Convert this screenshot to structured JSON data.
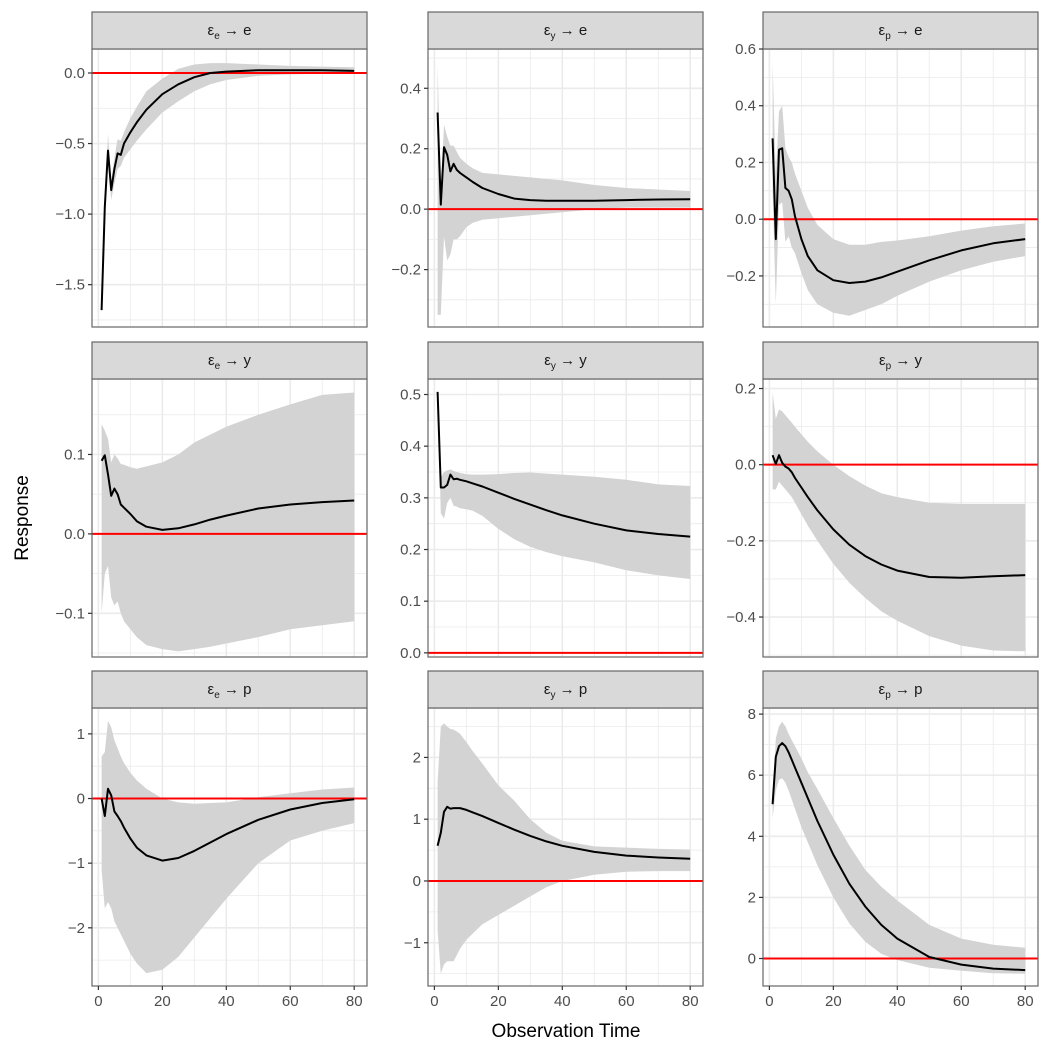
{
  "chart_data": {
    "type": "line",
    "title": "",
    "xlabel": "Observation Time",
    "ylabel": "Response",
    "layout": "3x3 facet grid",
    "grid": true,
    "legend": "none",
    "colors": {
      "line": "#000000",
      "band": "#d3d3d3",
      "zero_line": "#ff0000",
      "strip": "#d9d9d9",
      "grid": "#ebebeb",
      "border": "#666666"
    },
    "xlim": [
      -2,
      84
    ],
    "xticks": [
      0,
      20,
      40,
      60,
      80
    ],
    "panels": [
      {
        "shock": "e",
        "response": "e",
        "title_main": "ε",
        "title_sub": "e",
        "title_tail": " → e",
        "ylim": [
          -1.8,
          0.17
        ],
        "yticks": [
          0.0,
          -0.5,
          -1.0,
          -1.5
        ],
        "ytick_labels": [
          "0.0",
          "−0.5",
          "−1.0",
          "−1.5"
        ],
        "x": [
          1,
          2,
          3,
          4,
          5,
          6,
          7,
          8,
          10,
          12,
          15,
          20,
          25,
          30,
          35,
          40,
          50,
          60,
          70,
          80
        ],
        "value": [
          -1.68,
          -0.95,
          -0.55,
          -0.83,
          -0.68,
          -0.57,
          -0.58,
          -0.5,
          -0.42,
          -0.35,
          -0.26,
          -0.15,
          -0.08,
          -0.03,
          0.0,
          0.01,
          0.02,
          0.02,
          0.02,
          0.015
        ],
        "lower": [
          -1.68,
          -0.97,
          -0.62,
          -0.9,
          -0.78,
          -0.68,
          -0.66,
          -0.6,
          -0.54,
          -0.48,
          -0.4,
          -0.28,
          -0.2,
          -0.13,
          -0.08,
          -0.05,
          -0.02,
          -0.01,
          -0.005,
          -0.005
        ],
        "upper": [
          -1.68,
          -0.92,
          -0.43,
          -0.76,
          -0.6,
          -0.47,
          -0.48,
          -0.42,
          -0.32,
          -0.24,
          -0.13,
          -0.04,
          0.03,
          0.06,
          0.07,
          0.07,
          0.06,
          0.05,
          0.045,
          0.04
        ]
      },
      {
        "shock": "y",
        "response": "e",
        "title_main": "ε",
        "title_sub": "y",
        "title_tail": " → e",
        "ylim": [
          -0.39,
          0.53
        ],
        "yticks": [
          0.4,
          0.2,
          0.0,
          -0.2
        ],
        "ytick_labels": [
          "0.4",
          "0.2",
          "0.0",
          "−0.2"
        ],
        "x": [
          1,
          2,
          3,
          4,
          5,
          6,
          7,
          8,
          10,
          12,
          15,
          20,
          25,
          30,
          35,
          40,
          50,
          60,
          70,
          80
        ],
        "value": [
          0.32,
          0.015,
          0.205,
          0.18,
          0.125,
          0.15,
          0.13,
          0.12,
          0.105,
          0.09,
          0.07,
          0.05,
          0.035,
          0.03,
          0.028,
          0.028,
          0.028,
          0.03,
          0.032,
          0.033
        ],
        "lower": [
          -0.35,
          -0.35,
          -0.09,
          -0.17,
          -0.15,
          -0.1,
          -0.1,
          -0.09,
          -0.06,
          -0.045,
          -0.035,
          -0.03,
          -0.025,
          -0.02,
          -0.015,
          -0.01,
          0.0,
          0.005,
          0.005,
          0.005
        ],
        "upper": [
          0.48,
          0.05,
          0.28,
          0.24,
          0.21,
          0.21,
          0.19,
          0.17,
          0.15,
          0.135,
          0.12,
          0.115,
          0.11,
          0.105,
          0.1,
          0.095,
          0.08,
          0.07,
          0.065,
          0.06
        ]
      },
      {
        "shock": "p",
        "response": "e",
        "title_main": "ε",
        "title_sub": "p",
        "title_tail": " → e",
        "ylim": [
          -0.38,
          0.6
        ],
        "yticks": [
          0.6,
          0.4,
          0.2,
          0.0,
          -0.2
        ],
        "ytick_labels": [
          "0.6",
          "0.4",
          "0.2",
          "0.0",
          "−0.2"
        ],
        "x": [
          1,
          2,
          3,
          4,
          5,
          6,
          7,
          8,
          10,
          12,
          15,
          20,
          25,
          30,
          35,
          40,
          50,
          60,
          70,
          80
        ],
        "value": [
          0.285,
          -0.07,
          0.245,
          0.25,
          0.11,
          0.1,
          0.07,
          0.01,
          -0.07,
          -0.13,
          -0.18,
          -0.215,
          -0.225,
          -0.22,
          -0.205,
          -0.185,
          -0.145,
          -0.11,
          -0.085,
          -0.07
        ],
        "lower": [
          0.1,
          -0.3,
          0.05,
          0.06,
          -0.08,
          -0.06,
          -0.1,
          -0.12,
          -0.19,
          -0.25,
          -0.3,
          -0.33,
          -0.34,
          -0.32,
          -0.3,
          -0.27,
          -0.22,
          -0.18,
          -0.15,
          -0.13
        ],
        "upper": [
          0.55,
          0.15,
          0.38,
          0.4,
          0.25,
          0.22,
          0.2,
          0.16,
          0.1,
          0.04,
          -0.02,
          -0.07,
          -0.09,
          -0.09,
          -0.08,
          -0.075,
          -0.06,
          -0.04,
          -0.025,
          -0.015
        ]
      },
      {
        "shock": "e",
        "response": "y",
        "title_main": "ε",
        "title_sub": "e",
        "title_tail": " → y",
        "ylim": [
          -0.155,
          0.195
        ],
        "yticks": [
          0.1,
          0.0,
          -0.1
        ],
        "ytick_labels": [
          "0.1",
          "0.0",
          "−0.1"
        ],
        "x": [
          1,
          2,
          3,
          4,
          5,
          6,
          7,
          8,
          10,
          12,
          15,
          20,
          25,
          30,
          35,
          40,
          50,
          60,
          70,
          80
        ],
        "value": [
          0.092,
          0.099,
          0.075,
          0.048,
          0.057,
          0.05,
          0.037,
          0.033,
          0.025,
          0.016,
          0.009,
          0.005,
          0.007,
          0.012,
          0.018,
          0.023,
          0.032,
          0.037,
          0.04,
          0.042
        ],
        "lower": [
          -0.1,
          -0.05,
          -0.04,
          -0.08,
          -0.09,
          -0.085,
          -0.1,
          -0.11,
          -0.12,
          -0.13,
          -0.14,
          -0.145,
          -0.148,
          -0.145,
          -0.142,
          -0.138,
          -0.13,
          -0.12,
          -0.115,
          -0.11
        ],
        "upper": [
          0.138,
          0.13,
          0.12,
          0.09,
          0.1,
          0.095,
          0.088,
          0.087,
          0.084,
          0.082,
          0.085,
          0.09,
          0.1,
          0.115,
          0.125,
          0.135,
          0.15,
          0.163,
          0.175,
          0.178
        ]
      },
      {
        "shock": "y",
        "response": "y",
        "title_main": "ε",
        "title_sub": "y",
        "title_tail": " → y",
        "ylim": [
          -0.008,
          0.53
        ],
        "yticks": [
          0.5,
          0.4,
          0.3,
          0.2,
          0.1,
          0.0
        ],
        "ytick_labels": [
          "0.5",
          "0.4",
          "0.3",
          "0.2",
          "0.1",
          "0.0"
        ],
        "x": [
          1,
          2,
          3,
          4,
          5,
          6,
          7,
          8,
          10,
          12,
          15,
          20,
          25,
          30,
          35,
          40,
          50,
          60,
          70,
          80
        ],
        "value": [
          0.505,
          0.32,
          0.32,
          0.325,
          0.345,
          0.336,
          0.337,
          0.335,
          0.332,
          0.328,
          0.322,
          0.31,
          0.298,
          0.287,
          0.276,
          0.266,
          0.25,
          0.237,
          0.23,
          0.225
        ],
        "lower": [
          0.505,
          0.27,
          0.26,
          0.29,
          0.3,
          0.285,
          0.283,
          0.28,
          0.278,
          0.275,
          0.265,
          0.24,
          0.22,
          0.205,
          0.195,
          0.187,
          0.175,
          0.16,
          0.15,
          0.143
        ],
        "upper": [
          0.505,
          0.34,
          0.35,
          0.353,
          0.355,
          0.352,
          0.35,
          0.348,
          0.346,
          0.345,
          0.345,
          0.346,
          0.348,
          0.349,
          0.347,
          0.345,
          0.341,
          0.335,
          0.326,
          0.323
        ]
      },
      {
        "shock": "p",
        "response": "y",
        "title_main": "ε",
        "title_sub": "p",
        "title_tail": " → y",
        "ylim": [
          -0.505,
          0.225
        ],
        "yticks": [
          0.2,
          0.0,
          -0.2,
          -0.4
        ],
        "ytick_labels": [
          "0.2",
          "0.0",
          "−0.2",
          "−0.4"
        ],
        "x": [
          1,
          2,
          3,
          4,
          5,
          6,
          7,
          8,
          10,
          12,
          15,
          20,
          25,
          30,
          35,
          40,
          50,
          60,
          70,
          80
        ],
        "value": [
          0.025,
          0.002,
          0.025,
          0.005,
          -0.005,
          -0.01,
          -0.02,
          -0.035,
          -0.06,
          -0.085,
          -0.12,
          -0.17,
          -0.21,
          -0.24,
          -0.262,
          -0.278,
          -0.295,
          -0.297,
          -0.293,
          -0.29
        ],
        "lower": [
          -0.065,
          -0.065,
          -0.045,
          -0.055,
          -0.065,
          -0.075,
          -0.085,
          -0.1,
          -0.13,
          -0.16,
          -0.2,
          -0.26,
          -0.31,
          -0.35,
          -0.385,
          -0.41,
          -0.45,
          -0.475,
          -0.488,
          -0.49
        ],
        "upper": [
          0.19,
          0.12,
          0.145,
          0.14,
          0.13,
          0.12,
          0.11,
          0.1,
          0.08,
          0.06,
          0.035,
          0.0,
          -0.03,
          -0.055,
          -0.075,
          -0.085,
          -0.1,
          -0.103,
          -0.103,
          -0.103
        ]
      },
      {
        "shock": "e",
        "response": "p",
        "title_main": "ε",
        "title_sub": "e",
        "title_tail": " → p",
        "ylim": [
          -2.9,
          1.4
        ],
        "yticks": [
          1,
          0,
          -1,
          -2
        ],
        "ytick_labels": [
          "1",
          "0",
          "−1",
          "−2"
        ],
        "x": [
          1,
          2,
          3,
          4,
          5,
          6,
          7,
          8,
          10,
          12,
          15,
          20,
          25,
          30,
          35,
          40,
          50,
          60,
          70,
          80
        ],
        "value": [
          0.0,
          -0.27,
          0.15,
          0.05,
          -0.2,
          -0.27,
          -0.35,
          -0.45,
          -0.62,
          -0.76,
          -0.88,
          -0.96,
          -0.92,
          -0.81,
          -0.68,
          -0.55,
          -0.33,
          -0.17,
          -0.07,
          -0.01
        ],
        "lower": [
          -1.1,
          -1.7,
          -1.6,
          -1.7,
          -1.9,
          -2.0,
          -2.1,
          -2.2,
          -2.4,
          -2.55,
          -2.7,
          -2.65,
          -2.45,
          -2.15,
          -1.85,
          -1.55,
          -1.0,
          -0.65,
          -0.5,
          -0.38
        ],
        "upper": [
          0.65,
          0.72,
          1.2,
          1.1,
          0.9,
          0.78,
          0.65,
          0.55,
          0.4,
          0.28,
          0.15,
          0.0,
          -0.06,
          -0.08,
          -0.07,
          -0.06,
          0.02,
          0.08,
          0.14,
          0.17
        ]
      },
      {
        "shock": "y",
        "response": "p",
        "title_main": "ε",
        "title_sub": "y",
        "title_tail": " → p",
        "ylim": [
          -1.7,
          2.8
        ],
        "yticks": [
          2,
          1,
          0,
          -1
        ],
        "ytick_labels": [
          "2",
          "1",
          "0",
          "−1"
        ],
        "x": [
          1,
          2,
          3,
          4,
          5,
          6,
          7,
          8,
          10,
          12,
          15,
          20,
          25,
          30,
          35,
          40,
          50,
          60,
          70,
          80
        ],
        "value": [
          0.57,
          0.78,
          1.12,
          1.2,
          1.17,
          1.18,
          1.18,
          1.18,
          1.15,
          1.11,
          1.05,
          0.94,
          0.83,
          0.73,
          0.64,
          0.57,
          0.47,
          0.41,
          0.38,
          0.36
        ],
        "lower": [
          -0.8,
          -1.5,
          -1.35,
          -1.3,
          -1.3,
          -1.3,
          -1.2,
          -1.1,
          -0.95,
          -0.85,
          -0.7,
          -0.55,
          -0.4,
          -0.25,
          -0.1,
          0.0,
          0.1,
          0.15,
          0.16,
          0.16
        ],
        "upper": [
          1.6,
          2.5,
          2.55,
          2.5,
          2.46,
          2.45,
          2.42,
          2.38,
          2.25,
          2.1,
          1.9,
          1.55,
          1.3,
          1.0,
          0.78,
          0.65,
          0.56,
          0.54,
          0.52,
          0.51
        ]
      },
      {
        "shock": "p",
        "response": "p",
        "title_main": "ε",
        "title_sub": "p",
        "title_tail": " → p",
        "ylim": [
          -0.9,
          8.2
        ],
        "yticks": [
          8,
          6,
          4,
          2,
          0
        ],
        "ytick_labels": [
          "8",
          "6",
          "4",
          "2",
          "0"
        ],
        "x": [
          1,
          2,
          3,
          4,
          5,
          6,
          7,
          8,
          10,
          12,
          15,
          20,
          25,
          30,
          35,
          40,
          50,
          60,
          70,
          80
        ],
        "value": [
          5.05,
          6.6,
          6.95,
          7.05,
          6.95,
          6.75,
          6.5,
          6.25,
          5.75,
          5.25,
          4.5,
          3.4,
          2.45,
          1.7,
          1.1,
          0.65,
          0.05,
          -0.2,
          -0.33,
          -0.38
        ],
        "lower": [
          4.6,
          5.5,
          5.85,
          5.9,
          5.75,
          5.5,
          5.2,
          4.9,
          4.3,
          3.8,
          3.05,
          2.0,
          1.15,
          0.55,
          0.15,
          -0.05,
          -0.3,
          -0.4,
          -0.48,
          -0.5
        ],
        "upper": [
          5.2,
          7.2,
          7.6,
          7.75,
          7.6,
          7.35,
          7.15,
          6.95,
          6.55,
          6.1,
          5.55,
          4.6,
          3.7,
          2.9,
          2.35,
          1.9,
          1.1,
          0.65,
          0.45,
          0.35
        ]
      }
    ]
  }
}
